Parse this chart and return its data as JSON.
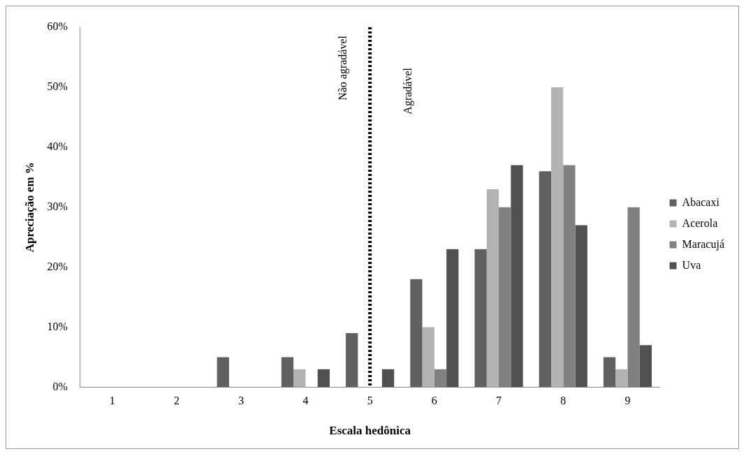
{
  "chart_data": {
    "type": "bar",
    "xlabel": "Escala hedônica",
    "ylabel": "Apreciação em %",
    "categories": [
      "1",
      "2",
      "3",
      "4",
      "5",
      "6",
      "7",
      "8",
      "9"
    ],
    "series": [
      {
        "name": "Abacaxi",
        "color": "#606060",
        "values": [
          0,
          0,
          5,
          5,
          9,
          18,
          23,
          36,
          5
        ]
      },
      {
        "name": "Acerola",
        "color": "#b3b3b3",
        "values": [
          0,
          0,
          0,
          3,
          0,
          10,
          33,
          50,
          3
        ]
      },
      {
        "name": "Maracujá",
        "color": "#808080",
        "values": [
          0,
          0,
          0,
          0,
          0,
          3,
          30,
          37,
          30
        ]
      },
      {
        "name": "Uva",
        "color": "#505050",
        "values": [
          0,
          0,
          0,
          3,
          3,
          23,
          37,
          27,
          7
        ]
      }
    ],
    "ylim": [
      0,
      60
    ],
    "yticks": [
      {
        "value": 0,
        "label": "0%"
      },
      {
        "value": 10,
        "label": "10%"
      },
      {
        "value": 20,
        "label": "20%"
      },
      {
        "value": 30,
        "label": "30%"
      },
      {
        "value": 40,
        "label": "40%"
      },
      {
        "value": 50,
        "label": "50%"
      },
      {
        "value": 60,
        "label": "60%"
      }
    ],
    "grid": false,
    "legend": "right",
    "ref_lines": [
      {
        "axis": "x",
        "value": "5",
        "label": "Não agradável",
        "color": "#000000",
        "line_style": "dotted"
      }
    ],
    "annotations": [
      "Agradável"
    ]
  }
}
